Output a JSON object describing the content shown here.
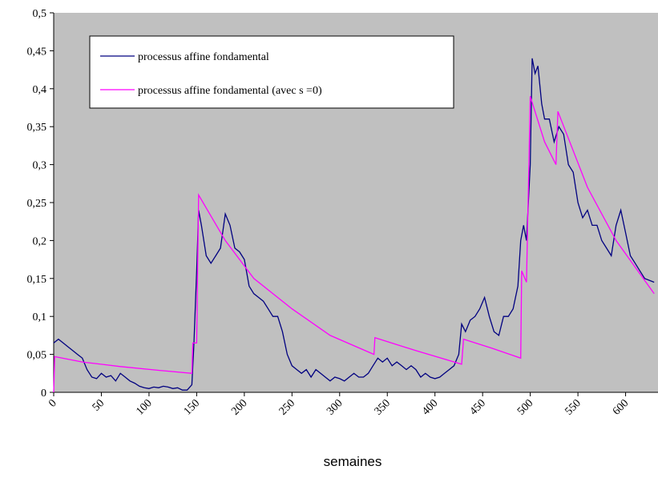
{
  "chart_data": {
    "type": "line",
    "xlabel": "semaines",
    "xlim": [
      0,
      634
    ],
    "ylim": [
      0,
      0.5
    ],
    "xticks": [
      0,
      50,
      100,
      150,
      200,
      250,
      300,
      350,
      400,
      450,
      500,
      550,
      600
    ],
    "yticks": [
      0,
      {
        "value": 0.05,
        "label": "0,05"
      },
      {
        "value": 0.1,
        "label": "0,1"
      },
      {
        "value": 0.15,
        "label": "0,15"
      },
      {
        "value": 0.2,
        "label": "0,2"
      },
      {
        "value": 0.25,
        "label": "0,25"
      },
      {
        "value": 0.3,
        "label": "0,3"
      },
      {
        "value": 0.35,
        "label": "0,35"
      },
      {
        "value": 0.4,
        "label": "0,4"
      },
      {
        "value": 0.45,
        "label": "0,45"
      },
      {
        "value": 0.5,
        "label": "0,5"
      }
    ],
    "background": "#c0c0c0",
    "series": [
      {
        "name": "processus affine fondamental",
        "color": "#000080",
        "x": [
          0,
          5,
          10,
          15,
          20,
          25,
          30,
          35,
          40,
          45,
          50,
          55,
          60,
          65,
          70,
          75,
          80,
          85,
          90,
          95,
          100,
          105,
          110,
          115,
          120,
          125,
          130,
          135,
          140,
          145,
          147,
          150,
          152,
          155,
          160,
          165,
          170,
          175,
          180,
          185,
          190,
          195,
          200,
          205,
          210,
          215,
          220,
          225,
          230,
          235,
          240,
          245,
          250,
          255,
          260,
          265,
          270,
          275,
          280,
          285,
          290,
          295,
          300,
          305,
          310,
          315,
          320,
          325,
          330,
          335,
          340,
          345,
          350,
          355,
          360,
          365,
          370,
          375,
          380,
          385,
          390,
          395,
          400,
          405,
          410,
          415,
          420,
          425,
          428,
          432,
          437,
          442,
          447,
          452,
          457,
          462,
          467,
          472,
          477,
          482,
          487,
          490,
          493,
          496,
          500,
          502,
          505,
          508,
          512,
          515,
          520,
          525,
          530,
          535,
          540,
          545,
          550,
          555,
          560,
          565,
          570,
          575,
          580,
          585,
          590,
          595,
          600,
          605,
          610,
          615,
          620,
          630
        ],
        "values": [
          0.065,
          0.07,
          0.065,
          0.06,
          0.055,
          0.05,
          0.045,
          0.03,
          0.02,
          0.018,
          0.025,
          0.02,
          0.022,
          0.015,
          0.025,
          0.02,
          0.015,
          0.012,
          0.008,
          0.006,
          0.005,
          0.007,
          0.006,
          0.008,
          0.007,
          0.005,
          0.006,
          0.003,
          0.003,
          0.01,
          0.06,
          0.16,
          0.24,
          0.22,
          0.18,
          0.17,
          0.18,
          0.19,
          0.235,
          0.22,
          0.19,
          0.185,
          0.175,
          0.14,
          0.13,
          0.125,
          0.12,
          0.11,
          0.1,
          0.1,
          0.08,
          0.05,
          0.035,
          0.03,
          0.025,
          0.03,
          0.02,
          0.03,
          0.025,
          0.02,
          0.015,
          0.02,
          0.018,
          0.015,
          0.02,
          0.025,
          0.02,
          0.02,
          0.025,
          0.035,
          0.045,
          0.04,
          0.045,
          0.035,
          0.04,
          0.035,
          0.03,
          0.035,
          0.03,
          0.02,
          0.025,
          0.02,
          0.018,
          0.02,
          0.025,
          0.03,
          0.035,
          0.05,
          0.09,
          0.08,
          0.095,
          0.1,
          0.11,
          0.125,
          0.1,
          0.08,
          0.075,
          0.1,
          0.1,
          0.11,
          0.14,
          0.2,
          0.22,
          0.2,
          0.3,
          0.44,
          0.42,
          0.43,
          0.38,
          0.36,
          0.36,
          0.33,
          0.35,
          0.34,
          0.3,
          0.29,
          0.25,
          0.23,
          0.24,
          0.22,
          0.22,
          0.2,
          0.19,
          0.18,
          0.22,
          0.24,
          0.21,
          0.18,
          0.17,
          0.16,
          0.15,
          0.145
        ]
      },
      {
        "name": "processus affine fondamental (avec s =0)",
        "color": "#ff00ff",
        "x": [
          0,
          1,
          30,
          70,
          110,
          145,
          146,
          150,
          152,
          180,
          210,
          250,
          290,
          336,
          337,
          380,
          428,
          430,
          460,
          490,
          491,
          496,
          500,
          515,
          527,
          529,
          560,
          590,
          630
        ],
        "values": [
          0,
          0.047,
          0.04,
          0.034,
          0.029,
          0.025,
          0.065,
          0.065,
          0.26,
          0.2,
          0.15,
          0.11,
          0.075,
          0.05,
          0.072,
          0.055,
          0.037,
          0.07,
          0.058,
          0.045,
          0.16,
          0.145,
          0.39,
          0.33,
          0.3,
          0.37,
          0.27,
          0.2,
          0.13
        ]
      }
    ]
  }
}
